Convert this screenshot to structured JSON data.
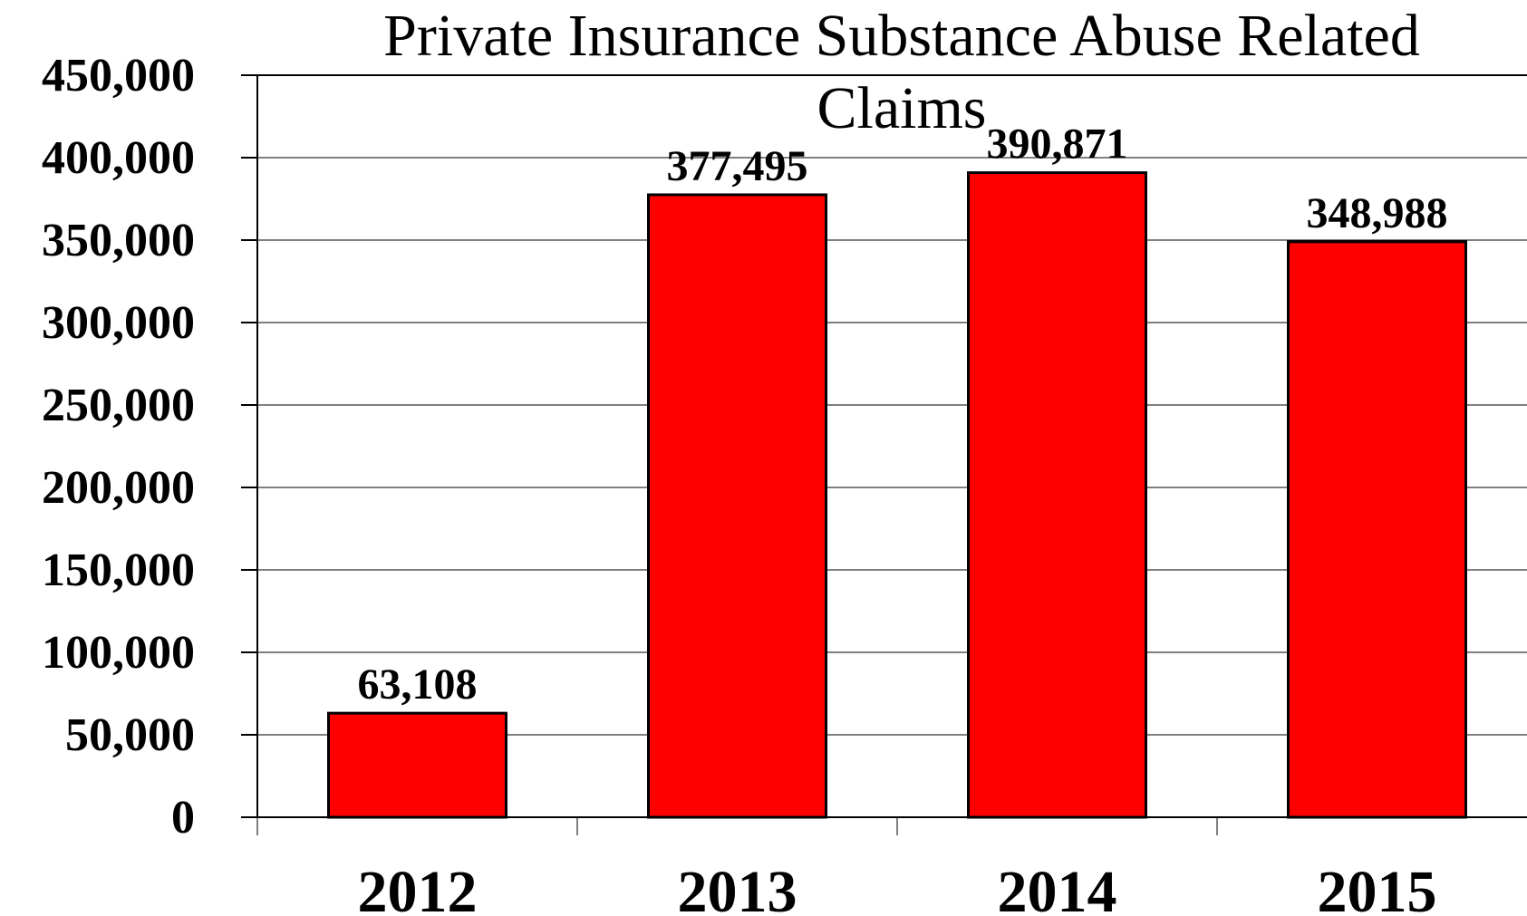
{
  "chart_data": {
    "type": "bar",
    "title_lines": [
      "Private Insurance Substance Abuse Related",
      "Claims"
    ],
    "categories": [
      "2012",
      "2013",
      "2014",
      "2015"
    ],
    "values": [
      63108,
      377495,
      390871,
      348988
    ],
    "data_labels": [
      "63,108",
      "377,495",
      "390,871",
      "348,988"
    ],
    "ylim": [
      0,
      450000
    ],
    "yticks": [
      0,
      50000,
      100000,
      150000,
      200000,
      250000,
      300000,
      350000,
      400000,
      450000
    ],
    "ytick_labels": [
      "0",
      "50,000",
      "100,000",
      "150,000",
      "200,000",
      "250,000",
      "300,000",
      "350,000",
      "400,000",
      "450,000"
    ],
    "xlabel": "",
    "ylabel": "",
    "grid": true,
    "legend": "none",
    "bar_color": "#ff0000",
    "bar_edge_color": "#000000"
  }
}
